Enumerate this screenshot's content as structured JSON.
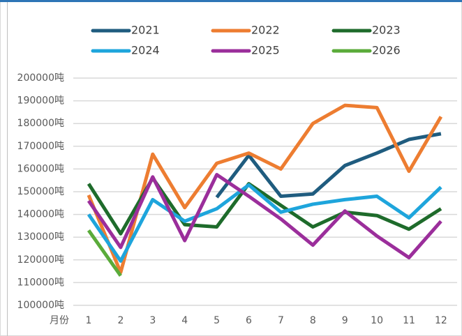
{
  "chart_data": {
    "type": "line",
    "x_label": "月份",
    "categories": [
      "1",
      "2",
      "3",
      "4",
      "5",
      "6",
      "7",
      "8",
      "9",
      "10",
      "11",
      "12"
    ],
    "ylim": [
      100000,
      200000
    ],
    "yticks": [
      {
        "value": 100000,
        "label": "100000吨"
      },
      {
        "value": 110000,
        "label": "110000吨"
      },
      {
        "value": 120000,
        "label": "120000吨"
      },
      {
        "value": 130000,
        "label": "130000吨"
      },
      {
        "value": 140000,
        "label": "140000吨"
      },
      {
        "value": 150000,
        "label": "150000吨"
      },
      {
        "value": 160000,
        "label": "160000吨"
      },
      {
        "value": 170000,
        "label": "170000吨"
      },
      {
        "value": 180000,
        "label": "180000吨"
      },
      {
        "value": 190000,
        "label": "190000吨"
      },
      {
        "value": 200000,
        "label": "200000吨"
      }
    ],
    "grid": true,
    "legend": "top",
    "series": [
      {
        "name": "2021",
        "color": "#1f5c7f",
        "values": [
          null,
          null,
          null,
          null,
          147500,
          166000,
          148000,
          149000,
          161500,
          167000,
          173000,
          175500
        ]
      },
      {
        "name": "2022",
        "color": "#ed7d31",
        "values": [
          148500,
          114500,
          166500,
          143000,
          162500,
          167000,
          160000,
          180000,
          188000,
          187000,
          159000,
          183000
        ]
      },
      {
        "name": "2023",
        "color": "#1e6b2b",
        "values": [
          153500,
          131500,
          156000,
          135500,
          134500,
          153500,
          144000,
          134500,
          141000,
          139500,
          133500,
          142500
        ]
      },
      {
        "name": "2024",
        "color": "#1ea5dc",
        "values": [
          140000,
          119500,
          146500,
          137000,
          142500,
          153000,
          141000,
          144500,
          146500,
          148000,
          138500,
          152000
        ]
      },
      {
        "name": "2025",
        "color": "#9b2e9b",
        "values": [
          146000,
          125500,
          156500,
          128500,
          157500,
          148000,
          138000,
          126500,
          141500,
          130500,
          121000,
          137000
        ]
      },
      {
        "name": "2026",
        "color": "#5aab3a",
        "values": [
          133000,
          113000,
          null,
          null,
          null,
          null,
          null,
          null,
          null,
          null,
          null,
          null
        ]
      }
    ]
  }
}
